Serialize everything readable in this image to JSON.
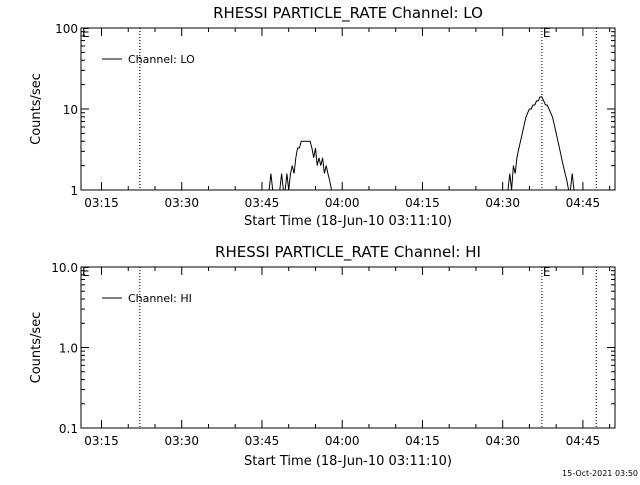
{
  "timestamp": "15-Oct-2021 03:50",
  "chart_data": [
    {
      "type": "line",
      "title": "RHESSI PARTICLE_RATE Channel: LO",
      "xlabel": "Start Time (18-Jun-10 03:11:10)",
      "ylabel": "Counts/sec",
      "yscale": "log",
      "xlim": [
        "03:11:10",
        "04:51:00"
      ],
      "ylim": [
        1,
        100
      ],
      "x_ticks": [
        "03:15",
        "03:30",
        "03:45",
        "04:00",
        "04:15",
        "04:30",
        "04:45"
      ],
      "y_ticks": [
        "1",
        "10",
        "100"
      ],
      "legend": {
        "position": "top-left",
        "entries": [
          "Channel: LO"
        ]
      },
      "markers": [
        {
          "time": "03:11:10",
          "label": "E"
        },
        {
          "time": "04:37:20",
          "label": "E"
        }
      ],
      "dotted_lines": [
        "03:22:10",
        "03:22:10",
        "04:37:20",
        "04:47:30"
      ],
      "series": [
        {
          "name": "Channel: LO",
          "x": [
            "03:46:00",
            "03:46:20",
            "03:46:40",
            "03:47:00",
            "03:47:20",
            "03:47:40",
            "03:48:00",
            "03:48:20",
            "03:48:40",
            "03:49:00",
            "03:49:20",
            "03:49:40",
            "03:50:00",
            "03:50:20",
            "03:50:40",
            "03:51:00",
            "03:51:20",
            "03:51:40",
            "03:52:00",
            "03:52:20",
            "03:52:40",
            "03:53:00",
            "03:53:20",
            "03:53:40",
            "03:54:00",
            "03:54:20",
            "03:54:40",
            "03:55:00",
            "03:55:20",
            "03:55:40",
            "03:56:00",
            "03:56:20",
            "03:56:40",
            "03:57:00",
            "03:57:20",
            "03:57:40",
            "03:58:00",
            "03:58:20",
            "03:58:40",
            "03:59:00",
            "04:31:00",
            "04:31:20",
            "04:31:40",
            "04:32:00",
            "04:32:20",
            "04:32:40",
            "04:33:00",
            "04:33:20",
            "04:33:40",
            "04:34:00",
            "04:34:20",
            "04:34:40",
            "04:35:00",
            "04:35:20",
            "04:35:40",
            "04:36:00",
            "04:36:20",
            "04:36:40",
            "04:37:00",
            "04:37:20",
            "04:37:40",
            "04:38:00",
            "04:38:20",
            "04:38:40",
            "04:39:00",
            "04:39:20",
            "04:39:40",
            "04:40:00",
            "04:40:20",
            "04:40:40",
            "04:41:00",
            "04:41:20",
            "04:41:40",
            "04:42:00",
            "04:42:20",
            "04:42:40",
            "04:43:00",
            "04:43:20",
            "04:43:40",
            "04:44:00"
          ],
          "y": [
            1,
            1,
            1.6,
            1,
            1,
            1,
            1,
            1,
            1.6,
            1,
            1,
            1.6,
            1,
            1.6,
            2.0,
            1.6,
            2.5,
            3.3,
            3.3,
            4.0,
            4.0,
            4.0,
            4.0,
            4.0,
            4.0,
            3.3,
            2.5,
            3.3,
            2.0,
            2.5,
            2.0,
            2.5,
            1.6,
            2.0,
            1.6,
            1.3,
            1,
            1,
            1,
            1,
            1,
            1.6,
            1,
            2.0,
            1.6,
            2.5,
            3.2,
            4.0,
            5.0,
            6.3,
            7.9,
            8.9,
            10.0,
            10.0,
            11.2,
            11.2,
            12.6,
            12.6,
            14.1,
            14.1,
            12.6,
            11.2,
            11.2,
            10.0,
            8.9,
            7.9,
            6.3,
            5.0,
            4.0,
            3.2,
            2.5,
            2.0,
            1.6,
            1.3,
            1,
            1,
            1.6,
            1,
            1,
            1
          ]
        }
      ]
    },
    {
      "type": "line",
      "title": "RHESSI PARTICLE_RATE Channel: HI",
      "xlabel": "Start Time (18-Jun-10 03:11:10)",
      "ylabel": "Counts/sec",
      "yscale": "log",
      "xlim": [
        "03:11:10",
        "04:51:00"
      ],
      "ylim": [
        0.1,
        10
      ],
      "x_ticks": [
        "03:15",
        "03:30",
        "03:45",
        "04:00",
        "04:15",
        "04:30",
        "04:45"
      ],
      "y_ticks": [
        "0.1",
        "1.0",
        "10.0"
      ],
      "legend": {
        "position": "top-left",
        "entries": [
          "Channel: HI"
        ]
      },
      "markers": [
        {
          "time": "03:11:10",
          "label": "E"
        },
        {
          "time": "04:37:20",
          "label": "E"
        }
      ],
      "dotted_lines": [
        "03:22:10",
        "04:37:20",
        "04:47:30"
      ],
      "series": [
        {
          "name": "Channel: HI",
          "x": [],
          "y": []
        }
      ]
    }
  ]
}
